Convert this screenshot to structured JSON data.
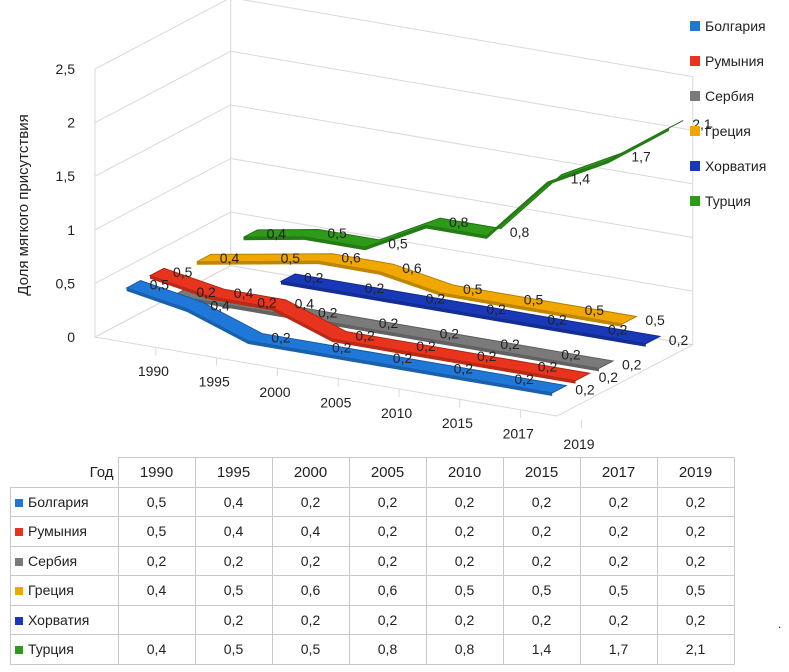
{
  "chart_data": {
    "type": "line",
    "style": "3d-ribbon",
    "ylabel": "Доля мягкого присутствия",
    "xlabel": "",
    "ylim": [
      0,
      2.5
    ],
    "y_ticks": [
      "0",
      "0,5",
      "1",
      "1,5",
      "2",
      "2,5"
    ],
    "categories": [
      "1990",
      "1995",
      "2000",
      "2005",
      "2010",
      "2015",
      "2017",
      "2019"
    ],
    "grid": true,
    "legend_position": "right",
    "series": [
      {
        "name": "Болгария",
        "color": "#1f78d8",
        "values": [
          0.5,
          0.4,
          0.2,
          0.2,
          0.2,
          0.2,
          0.2,
          0.2
        ],
        "labels": [
          "0,5",
          "0,4",
          "0,2",
          "0,2",
          "0,2",
          "0,2",
          "0,2",
          "0,2"
        ]
      },
      {
        "name": "Румыния",
        "color": "#e8341c",
        "values": [
          0.5,
          0.4,
          0.4,
          0.2,
          0.2,
          0.2,
          0.2,
          0.2
        ],
        "labels": [
          "0,5",
          "0,4",
          "0,4",
          "0,2",
          "0,2",
          "0,2",
          "0,2",
          "0,2"
        ]
      },
      {
        "name": "Сербия",
        "color": "#7a7a7a",
        "values": [
          0.2,
          0.2,
          0.2,
          0.2,
          0.2,
          0.2,
          0.2,
          0.2
        ],
        "labels": [
          "0,2",
          "0,2",
          "0,2",
          "0,2",
          "0,2",
          "0,2",
          "0,2",
          "0,2"
        ]
      },
      {
        "name": "Греция",
        "color": "#f0a800",
        "values": [
          0.4,
          0.5,
          0.6,
          0.6,
          0.5,
          0.5,
          0.5,
          0.5
        ],
        "labels": [
          "0,4",
          "0,5",
          "0,6",
          "0,6",
          "0,5",
          "0,5",
          "0,5",
          "0,5"
        ]
      },
      {
        "name": "Хорватия",
        "color": "#1838b8",
        "values": [
          null,
          0.2,
          0.2,
          0.2,
          0.2,
          0.2,
          0.2,
          0.2
        ],
        "labels": [
          "",
          "0,2",
          "0,2",
          "0,2",
          "0,2",
          "0,2",
          "0,2",
          "0,2"
        ]
      },
      {
        "name": "Турция",
        "color": "#2e9a1a",
        "values": [
          0.4,
          0.5,
          0.5,
          0.8,
          0.8,
          1.4,
          1.7,
          2.1
        ],
        "labels": [
          "0,4",
          "0,5",
          "0,5",
          "0,8",
          "0,8",
          "1,4",
          "1,7",
          "2,1"
        ]
      }
    ],
    "table": {
      "header_label": "Год",
      "years": [
        "1990",
        "1995",
        "2000",
        "2005",
        "2010",
        "2015",
        "2017",
        "2019"
      ],
      "rows": [
        {
          "name": "Болгария",
          "cells": [
            "0,5",
            "0,4",
            "0,2",
            "0,2",
            "0,2",
            "0,2",
            "0,2",
            "0,2"
          ]
        },
        {
          "name": "Румыния",
          "cells": [
            "0,5",
            "0,4",
            "0,4",
            "0,2",
            "0,2",
            "0,2",
            "0,2",
            "0,2"
          ]
        },
        {
          "name": "Сербия",
          "cells": [
            "0,2",
            "0,2",
            "0,2",
            "0,2",
            "0,2",
            "0,2",
            "0,2",
            "0,2"
          ]
        },
        {
          "name": "Греция",
          "cells": [
            "0,4",
            "0,5",
            "0,6",
            "0,6",
            "0,5",
            "0,5",
            "0,5",
            "0,5"
          ]
        },
        {
          "name": "Хорватия",
          "cells": [
            "",
            "0,2",
            "0,2",
            "0,2",
            "0,2",
            "0,2",
            "0,2",
            "0,2"
          ]
        },
        {
          "name": "Турция",
          "cells": [
            "0,4",
            "0,5",
            "0,5",
            "0,8",
            "0,8",
            "1,4",
            "1,7",
            "2,1"
          ]
        }
      ]
    }
  },
  "stray_mark": "."
}
